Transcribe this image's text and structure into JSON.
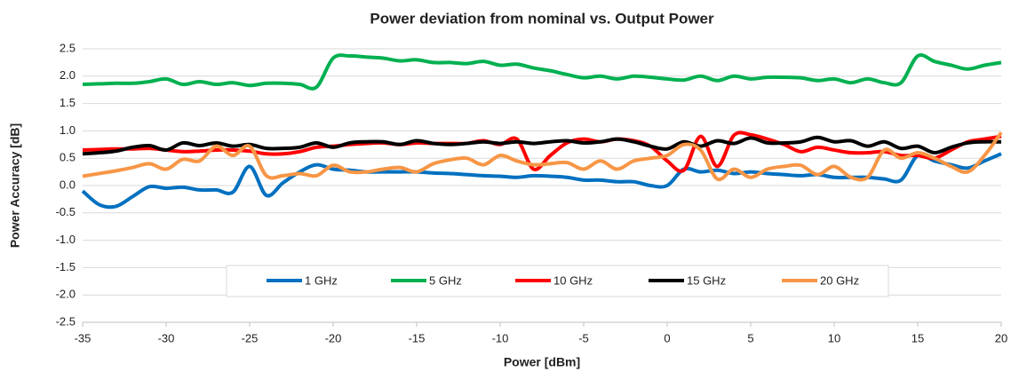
{
  "chart_data": {
    "type": "line",
    "title": "Power deviation from nominal vs. Output Power",
    "x_label": "Power [dBm]",
    "y_label": "Power Accuracy [dB]",
    "x": [
      -35,
      -34,
      -33,
      -32,
      -31,
      -30,
      -29,
      -28,
      -27,
      -26,
      -25,
      -24,
      -23,
      -22,
      -21,
      -20,
      -19,
      -18,
      -17,
      -16,
      -15,
      -14,
      -13,
      -12,
      -11,
      -10,
      -9,
      -8,
      -7,
      -6,
      -5,
      -4,
      -3,
      -2,
      -1,
      0,
      1,
      2,
      3,
      4,
      5,
      6,
      7,
      8,
      9,
      10,
      11,
      12,
      13,
      14,
      15,
      16,
      17,
      18,
      19,
      20
    ],
    "series": [
      {
        "name": "1 GHz",
        "color": "#0070c0",
        "values": [
          -0.1,
          -0.35,
          -0.38,
          -0.2,
          -0.02,
          -0.05,
          -0.03,
          -0.08,
          -0.08,
          -0.12,
          0.35,
          -0.18,
          0.05,
          0.25,
          0.38,
          0.3,
          0.28,
          0.25,
          0.25,
          0.25,
          0.25,
          0.23,
          0.22,
          0.2,
          0.18,
          0.17,
          0.15,
          0.18,
          0.17,
          0.15,
          0.1,
          0.1,
          0.07,
          0.07,
          0.0,
          0.0,
          0.3,
          0.25,
          0.28,
          0.22,
          0.25,
          0.22,
          0.2,
          0.18,
          0.2,
          0.15,
          0.15,
          0.15,
          0.12,
          0.1,
          0.55,
          0.45,
          0.38,
          0.32,
          0.45,
          0.58
        ]
      },
      {
        "name": "5 GHz",
        "color": "#00b050",
        "values": [
          1.85,
          1.86,
          1.87,
          1.87,
          1.9,
          1.95,
          1.85,
          1.9,
          1.85,
          1.88,
          1.83,
          1.87,
          1.87,
          1.85,
          1.8,
          2.33,
          2.37,
          2.35,
          2.33,
          2.28,
          2.3,
          2.25,
          2.25,
          2.23,
          2.27,
          2.2,
          2.22,
          2.15,
          2.1,
          2.03,
          1.97,
          2.0,
          1.95,
          2.0,
          1.98,
          1.95,
          1.93,
          2.0,
          1.92,
          2.0,
          1.95,
          1.98,
          1.98,
          1.97,
          1.92,
          1.95,
          1.88,
          1.95,
          1.88,
          1.88,
          2.37,
          2.27,
          2.2,
          2.13,
          2.2,
          2.25
        ]
      },
      {
        "name": "10 GHz",
        "color": "#ff0000",
        "values": [
          0.65,
          0.66,
          0.67,
          0.67,
          0.68,
          0.65,
          0.62,
          0.63,
          0.65,
          0.65,
          0.63,
          0.58,
          0.58,
          0.62,
          0.7,
          0.72,
          0.75,
          0.77,
          0.78,
          0.75,
          0.78,
          0.77,
          0.77,
          0.77,
          0.82,
          0.75,
          0.85,
          0.3,
          0.55,
          0.78,
          0.85,
          0.8,
          0.85,
          0.82,
          0.72,
          0.45,
          0.28,
          0.9,
          0.35,
          0.92,
          0.93,
          0.85,
          0.75,
          0.62,
          0.7,
          0.65,
          0.6,
          0.6,
          0.62,
          0.55,
          0.55,
          0.5,
          0.65,
          0.8,
          0.85,
          0.9
        ]
      },
      {
        "name": "15 GHz",
        "color": "#000000",
        "values": [
          0.58,
          0.6,
          0.63,
          0.7,
          0.73,
          0.65,
          0.78,
          0.73,
          0.78,
          0.72,
          0.75,
          0.68,
          0.68,
          0.7,
          0.78,
          0.7,
          0.78,
          0.8,
          0.8,
          0.75,
          0.82,
          0.77,
          0.75,
          0.77,
          0.8,
          0.77,
          0.8,
          0.77,
          0.8,
          0.82,
          0.78,
          0.8,
          0.85,
          0.8,
          0.72,
          0.67,
          0.8,
          0.72,
          0.82,
          0.77,
          0.87,
          0.78,
          0.78,
          0.8,
          0.88,
          0.8,
          0.82,
          0.72,
          0.8,
          0.68,
          0.72,
          0.6,
          0.7,
          0.78,
          0.8,
          0.8
        ]
      },
      {
        "name": "20 GHz",
        "color": "#f79646",
        "values": [
          0.17,
          0.22,
          0.27,
          0.33,
          0.4,
          0.3,
          0.48,
          0.45,
          0.72,
          0.55,
          0.72,
          0.18,
          0.18,
          0.22,
          0.18,
          0.37,
          0.25,
          0.25,
          0.3,
          0.33,
          0.25,
          0.4,
          0.47,
          0.5,
          0.38,
          0.55,
          0.45,
          0.38,
          0.4,
          0.42,
          0.3,
          0.45,
          0.3,
          0.45,
          0.5,
          0.55,
          0.75,
          0.65,
          0.12,
          0.3,
          0.15,
          0.3,
          0.35,
          0.37,
          0.2,
          0.35,
          0.15,
          0.15,
          0.65,
          0.5,
          0.6,
          0.5,
          0.35,
          0.25,
          0.55,
          0.97
        ]
      }
    ],
    "xlim": [
      -35,
      20
    ],
    "xticks": [
      -35,
      -30,
      -25,
      -20,
      -15,
      -10,
      -5,
      0,
      5,
      10,
      15,
      20
    ],
    "ylim": [
      -2.5,
      2.5
    ],
    "yticks": [
      -2.5,
      {
        "value": -2,
        "label": "-2.0"
      },
      -1.5,
      {
        "value": -1,
        "label": "-1.0"
      },
      -0.5,
      {
        "value": 0,
        "label": "0.0"
      },
      0.5,
      {
        "value": 1,
        "label": "1.0"
      },
      1.5,
      {
        "value": 2,
        "label": "2.0"
      },
      2.5
    ],
    "grid": true,
    "legend": "bottom"
  }
}
